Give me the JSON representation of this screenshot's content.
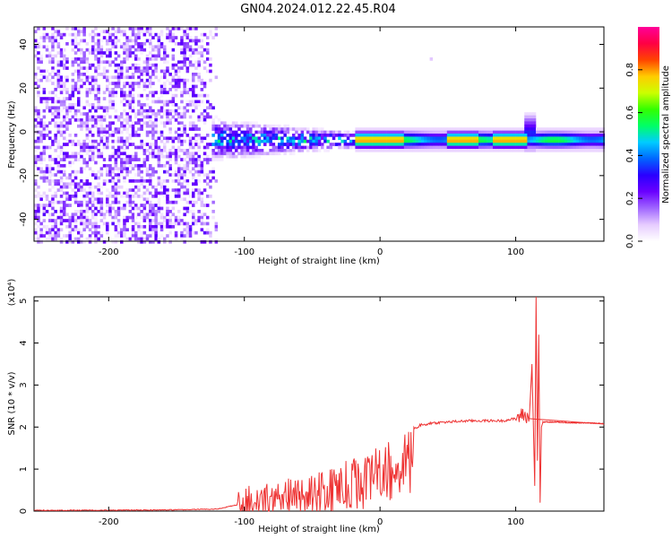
{
  "title": "GN04.2024.012.22.45.R04",
  "colors": {
    "snr_line": "#ee3333",
    "background": "#ffffff",
    "axes": "#000000",
    "colormap": [
      "#ffffff",
      "#e6ccff",
      "#a066ff",
      "#6a00ff",
      "#2a00ff",
      "#0066ff",
      "#00ccff",
      "#00ff66",
      "#33ff00",
      "#ccff00",
      "#ffcc00",
      "#ff4400",
      "#ff0044",
      "#ff0099"
    ]
  },
  "chart_data": [
    {
      "type": "heatmap",
      "title": "GN04.2024.012.22.45.R04",
      "xlabel": "Height of straight line (km)",
      "ylabel": "Frequency (Hz)",
      "xlim": [
        -255,
        165
      ],
      "ylim": [
        -50,
        48
      ],
      "x_ticks": [
        -200,
        -100,
        0,
        100
      ],
      "y_ticks": [
        -40,
        -20,
        0,
        20,
        40
      ],
      "x_tick_labels": [
        "-200",
        "-100",
        "0",
        "100"
      ],
      "y_tick_labels": [
        "-40",
        "-20",
        "0",
        "20",
        "40"
      ],
      "colorbar": {
        "label": "Normalized spectral amplitude",
        "range": [
          0,
          1
        ],
        "ticks": [
          0.0,
          0.2,
          0.4,
          0.6,
          0.8
        ],
        "tick_labels": [
          "0.0",
          "0.2",
          "0.4",
          "0.6",
          "0.8"
        ]
      },
      "features": {
        "noise_region_km": [
          -255,
          -120
        ],
        "noise_amplitude": 0.2,
        "transition_region_km": [
          -125,
          -20
        ],
        "ridge_frequency_hz": -3,
        "ridge_region_km": [
          -20,
          165
        ],
        "ridge_peak_amplitude": 0.9,
        "ridge_peaks_km": [
          -15,
          5,
          60,
          95
        ],
        "spike_km": 110
      }
    },
    {
      "type": "line",
      "xlabel": "Height of straight line (km)",
      "ylabel": "SNR (10 * v/v)",
      "y_multiplier": "(x10⁴)",
      "xlim": [
        -255,
        165
      ],
      "ylim": [
        0,
        5.1
      ],
      "x_ticks": [
        -200,
        -100,
        0,
        100
      ],
      "y_ticks": [
        0,
        1,
        2,
        3,
        4,
        5
      ],
      "x_tick_labels": [
        "-200",
        "-100",
        "0",
        "100"
      ],
      "y_tick_labels": [
        "0",
        "1",
        "2",
        "3",
        "4",
        "5"
      ],
      "series": [
        {
          "x": [
            -255,
            -200,
            -150,
            -120,
            -105,
            -100,
            -90,
            -80,
            -70,
            -60,
            -50,
            -40,
            -30,
            -20,
            -10,
            0,
            10,
            20,
            25,
            30,
            40,
            50,
            60,
            70,
            80,
            90,
            100,
            105,
            110,
            112,
            114,
            115,
            116,
            117,
            118,
            119,
            120,
            130,
            140,
            150,
            160,
            165
          ],
          "y": [
            0.02,
            0.02,
            0.03,
            0.05,
            0.15,
            0.3,
            0.35,
            0.4,
            0.45,
            0.5,
            0.6,
            0.7,
            0.85,
            1.0,
            1.15,
            1.3,
            1.55,
            1.85,
            1.95,
            2.05,
            2.1,
            2.12,
            2.14,
            2.15,
            2.15,
            2.15,
            2.2,
            2.3,
            2.2,
            3.5,
            0.6,
            5.1,
            1.2,
            4.2,
            0.2,
            2.0,
            2.12,
            2.12,
            2.1,
            2.1,
            2.09,
            2.08
          ]
        }
      ]
    }
  ]
}
